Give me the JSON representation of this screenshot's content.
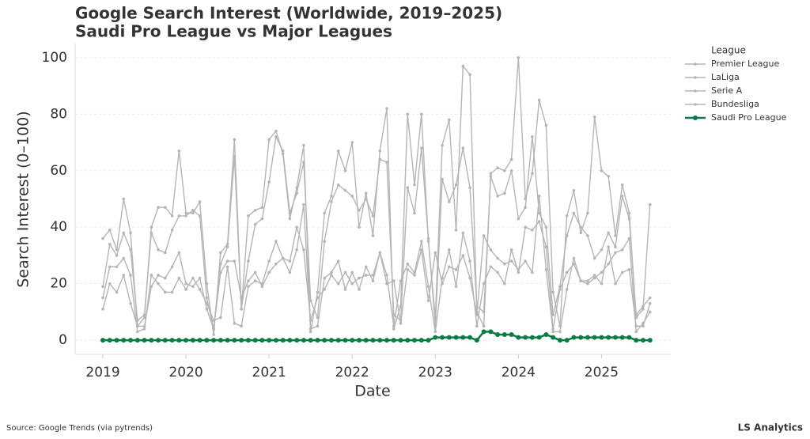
{
  "chart_data": {
    "type": "line",
    "title": "Google Search Interest (Worldwide, 2019–2025)",
    "subtitle": "Saudi Pro League vs Major Leagues",
    "xlabel": "Date",
    "ylabel": "Search Interest (0–100)",
    "legend_title": "League",
    "legend": "right",
    "grid": true,
    "source": "Source: Google Trends (via pytrends)",
    "brand": "LS Analytics",
    "x": [
      "2019-01",
      "2019-02",
      "2019-03",
      "2019-04",
      "2019-05",
      "2019-06",
      "2019-07",
      "2019-08",
      "2019-09",
      "2019-10",
      "2019-11",
      "2019-12",
      "2020-01",
      "2020-02",
      "2020-03",
      "2020-04",
      "2020-05",
      "2020-06",
      "2020-07",
      "2020-08",
      "2020-09",
      "2020-10",
      "2020-11",
      "2020-12",
      "2021-01",
      "2021-02",
      "2021-03",
      "2021-04",
      "2021-05",
      "2021-06",
      "2021-07",
      "2021-08",
      "2021-09",
      "2021-10",
      "2021-11",
      "2021-12",
      "2022-01",
      "2022-02",
      "2022-03",
      "2022-04",
      "2022-05",
      "2022-06",
      "2022-07",
      "2022-08",
      "2022-09",
      "2022-10",
      "2022-11",
      "2022-12",
      "2023-01",
      "2023-02",
      "2023-03",
      "2023-04",
      "2023-05",
      "2023-06",
      "2023-07",
      "2023-08",
      "2023-09",
      "2023-10",
      "2023-11",
      "2023-12",
      "2024-01",
      "2024-02",
      "2024-03",
      "2024-04",
      "2024-05",
      "2024-06",
      "2024-07",
      "2024-08",
      "2024-09",
      "2024-10",
      "2024-11",
      "2024-12",
      "2025-01",
      "2025-02",
      "2025-03",
      "2025-04",
      "2025-05",
      "2025-06",
      "2025-07",
      "2025-08"
    ],
    "xlim": [
      "2018-09",
      "2025-11"
    ],
    "xticks": [
      2019,
      2020,
      2021,
      2022,
      2023,
      2024,
      2025
    ],
    "ylim": [
      -5,
      105
    ],
    "yticks": [
      0,
      20,
      40,
      60,
      80,
      100
    ],
    "series": [
      {
        "name": "Premier League",
        "color": "#b5b5b5",
        "values": [
          36,
          39,
          32,
          50,
          38,
          5,
          8,
          40,
          47,
          47,
          44,
          67,
          45,
          45,
          49,
          20,
          2,
          31,
          34,
          71,
          11,
          44,
          46,
          47,
          71,
          74,
          66,
          43,
          54,
          69,
          3,
          17,
          45,
          51,
          67,
          60,
          70,
          40,
          52,
          37,
          67,
          82,
          4,
          12,
          80,
          55,
          80,
          35,
          8,
          69,
          78,
          39,
          97,
          94,
          10,
          5,
          59,
          61,
          60,
          64,
          100,
          50,
          59,
          85,
          76,
          17,
          5,
          44,
          53,
          38,
          45,
          79,
          60,
          58,
          37,
          55,
          45,
          8,
          11,
          48
        ]
      },
      {
        "name": "LaLiga",
        "color": "#b5b5b5",
        "values": [
          19,
          34,
          30,
          38,
          32,
          7,
          9,
          38,
          32,
          31,
          39,
          44,
          44,
          46,
          44,
          15,
          4,
          27,
          33,
          65,
          11,
          28,
          41,
          43,
          56,
          72,
          67,
          45,
          52,
          63,
          14,
          8,
          35,
          49,
          55,
          53,
          51,
          46,
          50,
          44,
          64,
          63,
          9,
          7,
          54,
          45,
          68,
          36,
          5,
          57,
          49,
          55,
          68,
          54,
          12,
          10,
          58,
          51,
          52,
          60,
          43,
          47,
          72,
          45,
          40,
          9,
          19,
          37,
          45,
          40,
          37,
          29,
          32,
          38,
          33,
          51,
          43,
          9,
          12,
          15
        ]
      },
      {
        "name": "Serie A",
        "color": "#b5b5b5",
        "values": [
          15,
          26,
          26,
          29,
          23,
          3,
          4,
          23,
          20,
          17,
          17,
          22,
          18,
          22,
          18,
          13,
          7,
          8,
          26,
          6,
          5,
          19,
          21,
          20,
          28,
          35,
          29,
          24,
          32,
          48,
          4,
          5,
          22,
          24,
          28,
          18,
          24,
          18,
          26,
          21,
          31,
          23,
          5,
          21,
          27,
          24,
          35,
          19,
          3,
          22,
          32,
          19,
          38,
          28,
          5,
          20,
          26,
          24,
          20,
          32,
          24,
          40,
          39,
          42,
          33,
          4,
          18,
          24,
          27,
          21,
          20,
          22,
          24,
          27,
          31,
          32,
          36,
          3,
          6,
          10
        ]
      },
      {
        "name": "Bundesliga",
        "color": "#b5b5b5",
        "values": [
          11,
          20,
          17,
          23,
          13,
          5,
          5,
          19,
          23,
          22,
          26,
          31,
          20,
          19,
          22,
          11,
          4,
          24,
          28,
          28,
          15,
          21,
          24,
          19,
          24,
          27,
          29,
          28,
          40,
          32,
          7,
          15,
          18,
          23,
          20,
          24,
          20,
          22,
          23,
          23,
          31,
          20,
          21,
          6,
          25,
          23,
          32,
          14,
          31,
          20,
          26,
          25,
          30,
          22,
          9,
          37,
          32,
          29,
          27,
          28,
          25,
          28,
          24,
          51,
          25,
          3,
          3,
          18,
          29,
          21,
          21,
          23,
          20,
          33,
          20,
          24,
          25,
          5,
          5,
          13
        ]
      },
      {
        "name": "Saudi Pro League",
        "color": "#0b7a45",
        "values": [
          0,
          0,
          0,
          0,
          0,
          0,
          0,
          0,
          0,
          0,
          0,
          0,
          0,
          0,
          0,
          0,
          0,
          0,
          0,
          0,
          0,
          0,
          0,
          0,
          0,
          0,
          0,
          0,
          0,
          0,
          0,
          0,
          0,
          0,
          0,
          0,
          0,
          0,
          0,
          0,
          0,
          0,
          0,
          0,
          0,
          0,
          0,
          0,
          1,
          1,
          1,
          1,
          1,
          1,
          0,
          3,
          3,
          2,
          2,
          2,
          1,
          1,
          1,
          1,
          2,
          1,
          0,
          0,
          1,
          1,
          1,
          1,
          1,
          1,
          1,
          1,
          1,
          0,
          0,
          0
        ]
      }
    ]
  }
}
